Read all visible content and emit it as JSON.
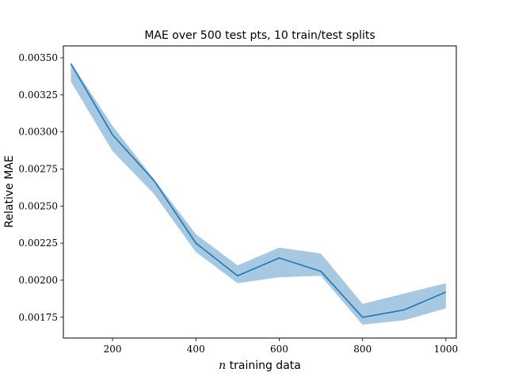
{
  "chart_data": {
    "type": "line",
    "title": "MAE over 500 test pts, 10 train/test splits",
    "xlabel_var": "n",
    "xlabel_rest": " training data",
    "ylabel": "Relative MAE",
    "xlim": [
      82,
      1025
    ],
    "ylim": [
      0.00161,
      0.00358
    ],
    "xticks": [
      200,
      400,
      600,
      800,
      1000
    ],
    "xtick_labels": [
      "200",
      "400",
      "600",
      "800",
      "1000"
    ],
    "yticks": [
      0.00175,
      0.002,
      0.00225,
      0.0025,
      0.00275,
      0.003,
      0.00325,
      0.0035
    ],
    "ytick_labels": [
      "0.00175",
      "0.00200",
      "0.00225",
      "0.00250",
      "0.00275",
      "0.00300",
      "0.00325",
      "0.00350"
    ],
    "grid": false,
    "colors": {
      "line": "#1f77b4",
      "band": "#a6c8e0"
    },
    "series": [
      {
        "x": [
          100,
          200,
          300,
          400,
          500,
          600,
          700,
          800,
          900,
          1000
        ],
        "values": [
          0.00346,
          0.00298,
          0.00267,
          0.00225,
          0.00203,
          0.00215,
          0.00206,
          0.00175,
          0.0018,
          0.00192
        ],
        "upper": [
          0.00347,
          0.00304,
          0.00268,
          0.00231,
          0.0021,
          0.00222,
          0.00218,
          0.00184,
          0.00191,
          0.00198
        ],
        "lower": [
          0.00334,
          0.00287,
          0.00258,
          0.00219,
          0.00198,
          0.00202,
          0.00203,
          0.0017,
          0.00173,
          0.00181
        ]
      }
    ]
  }
}
